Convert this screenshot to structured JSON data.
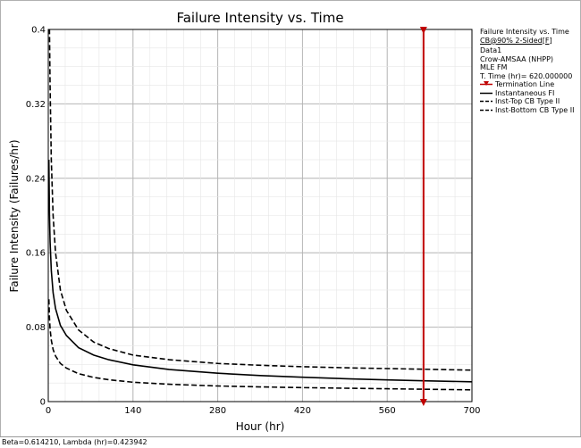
{
  "chart_data": {
    "type": "line",
    "title": "Failure Intensity vs. Time",
    "xlabel": "Hour (hr)",
    "ylabel": "Failure Intensity (Failures/hr)",
    "xlim": [
      0,
      700
    ],
    "ylim": [
      0,
      0.4
    ],
    "x_ticks": [
      0,
      140,
      280,
      420,
      560,
      700
    ],
    "y_ticks": [
      0,
      0.08,
      0.16,
      0.24,
      0.32,
      0.4
    ],
    "x_tick_labels": [
      "0",
      "140",
      "280",
      "420",
      "560",
      "700"
    ],
    "y_tick_labels": [
      "0",
      "0.08",
      "0.16",
      "0.24",
      "0.32",
      "0.4"
    ],
    "grid": true,
    "legend_position": "right",
    "series": [
      {
        "name": "Instantaneous FI",
        "style": "solid",
        "color": "#000000",
        "x": [
          1,
          2,
          3,
          5,
          8,
          12,
          20,
          30,
          50,
          75,
          100,
          140,
          200,
          280,
          350,
          420,
          500,
          560,
          620,
          700
        ],
        "y": [
          0.26,
          0.201,
          0.172,
          0.141,
          0.117,
          0.1,
          0.082,
          0.071,
          0.058,
          0.05,
          0.045,
          0.0395,
          0.0345,
          0.0305,
          0.028,
          0.0262,
          0.0244,
          0.0233,
          0.0224,
          0.0213
        ]
      },
      {
        "name": "Inst-Top CB Type II",
        "style": "dashed",
        "color": "#000000",
        "x": [
          1,
          2,
          3,
          5,
          8,
          12,
          20,
          30,
          50,
          75,
          100,
          140,
          200,
          280,
          350,
          420,
          500,
          560,
          620,
          700
        ],
        "y": [
          0.4,
          0.4,
          0.34,
          0.26,
          0.2,
          0.16,
          0.12,
          0.098,
          0.077,
          0.064,
          0.057,
          0.05,
          0.045,
          0.041,
          0.039,
          0.0375,
          0.0362,
          0.0355,
          0.0348,
          0.0338
        ]
      },
      {
        "name": "Inst-Bottom CB Type II",
        "style": "dashed",
        "color": "#000000",
        "x": [
          1,
          2,
          3,
          5,
          8,
          12,
          20,
          30,
          50,
          75,
          100,
          140,
          200,
          280,
          350,
          420,
          500,
          560,
          620,
          700
        ],
        "y": [
          0.11,
          0.09,
          0.078,
          0.066,
          0.056,
          0.049,
          0.041,
          0.036,
          0.03,
          0.026,
          0.0235,
          0.0208,
          0.0186,
          0.0168,
          0.0158,
          0.015,
          0.0143,
          0.0138,
          0.0133,
          0.0126
        ]
      }
    ],
    "annotations": [
      {
        "type": "vertical-line",
        "name": "Termination Line",
        "x": 620,
        "color": "#c00000"
      }
    ]
  },
  "legend": {
    "header_line1": "Failure Intensity vs. Time",
    "header_line2": "CB@90% 2-Sided[F]",
    "data_name": "Data1",
    "model": "Crow-AMSAA (NHPP)",
    "method": "MLE FM",
    "t_time": "T. Time (hr)= 620.000000",
    "entries": {
      "termination": "Termination Line",
      "instantaneous": "Instantaneous FI",
      "top": "Inst-Top CB Type II",
      "bottom": "Inst-Bottom CB Type II"
    }
  },
  "footer_text": "Beta=0.614210, Lambda (hr)=0.423942",
  "colors": {
    "termination": "#c00000",
    "grid": "#b4b4b4",
    "axis": "#000000"
  }
}
